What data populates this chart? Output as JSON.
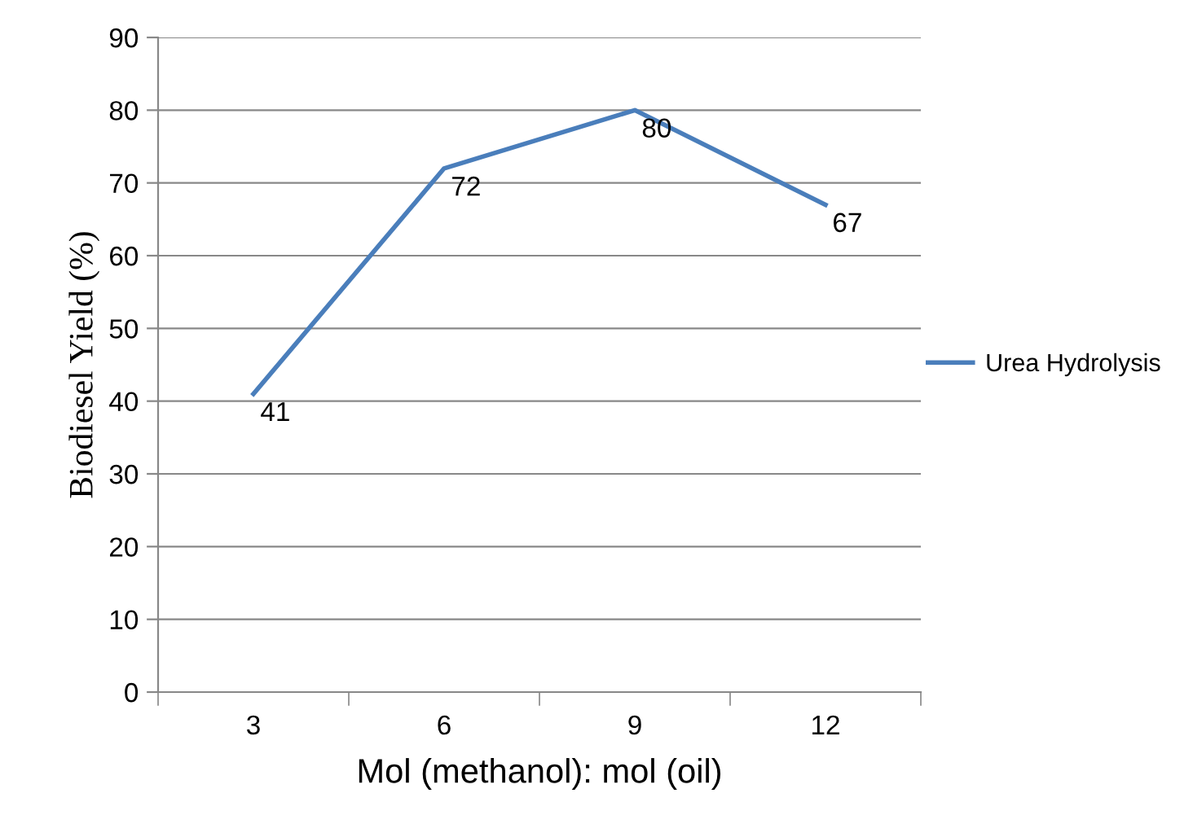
{
  "chart_data": {
    "type": "line",
    "xlabel": "Mol (methanol): mol (oil)",
    "ylabel": "Biodiesel Yield (%)",
    "categories": [
      "3",
      "6",
      "9",
      "12"
    ],
    "series": [
      {
        "name": "Urea Hydrolysis",
        "color": "#4a7ebb",
        "values": [
          41,
          72,
          80,
          67
        ]
      }
    ],
    "ylim": [
      0,
      90
    ],
    "yticks": [
      0,
      10,
      20,
      30,
      40,
      50,
      60,
      70,
      80,
      90
    ],
    "grid": "y",
    "legend": "right",
    "data_labels": true,
    "marker": "none",
    "line_style": "solid"
  }
}
